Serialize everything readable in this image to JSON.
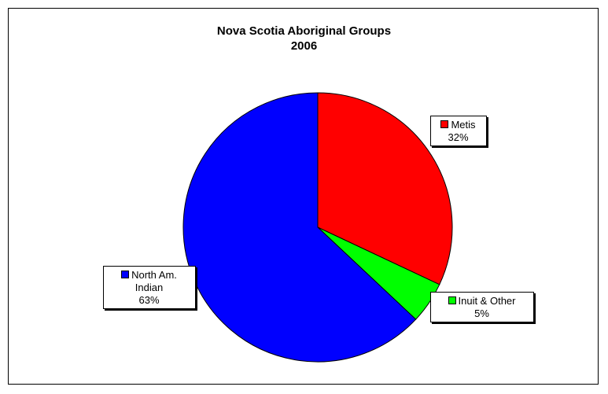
{
  "chart_data": {
    "type": "pie",
    "title": "Nova Scotia Aboriginal Groups",
    "subtitle": "2006",
    "slices": [
      {
        "label": "Metis",
        "value": 32,
        "value_label": "32%",
        "color": "#ff0000"
      },
      {
        "label": "Inuit & Other",
        "value": 5,
        "value_label": "5%",
        "color": "#00ff00"
      },
      {
        "label": "North Am. Indian",
        "value": 63,
        "value_label": "63%",
        "color": "#0000ff"
      }
    ],
    "start_angle": "12 o'clock",
    "direction": "clockwise",
    "data_labels": "category name with swatch and percentage"
  }
}
